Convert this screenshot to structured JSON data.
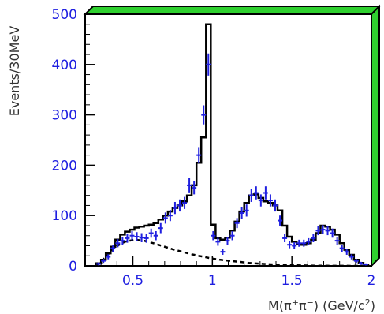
{
  "chart_data": {
    "type": "histogram",
    "title": "",
    "xlabel": {
      "prefix": "M(π",
      "sup1": "+",
      "mid": "π",
      "sup2": "−",
      "suffix": ") (GeV/c",
      "sup3": "2",
      "end": ")"
    },
    "ylabel": "Events/30MeV",
    "xlim": [
      0.2,
      2.0
    ],
    "ylim": [
      0,
      500
    ],
    "xticks": [
      {
        "value": 0.5,
        "label": "0.5"
      },
      {
        "value": 1.0,
        "label": "1"
      },
      {
        "value": 1.5,
        "label": "1.5"
      },
      {
        "value": 2.0,
        "label": "2"
      }
    ],
    "yticks": [
      {
        "value": 0,
        "label": "0"
      },
      {
        "value": 100,
        "label": "100"
      },
      {
        "value": 200,
        "label": "200"
      },
      {
        "value": 300,
        "label": "300"
      },
      {
        "value": 400,
        "label": "400"
      },
      {
        "value": 500,
        "label": "500"
      }
    ],
    "colors": {
      "frame": "#000000",
      "frame_shadow": "#2fd02f",
      "data": "#1f1fe0",
      "fit": "#000000",
      "tick_labels": "#1f1fe0"
    },
    "fit_histogram": {
      "name": "",
      "bin_edges": [
        0.27,
        0.3,
        0.33,
        0.36,
        0.39,
        0.42,
        0.45,
        0.48,
        0.51,
        0.54,
        0.57,
        0.6,
        0.63,
        0.66,
        0.69,
        0.72,
        0.75,
        0.78,
        0.81,
        0.84,
        0.87,
        0.9,
        0.93,
        0.96,
        0.99,
        1.02,
        1.05,
        1.08,
        1.11,
        1.14,
        1.17,
        1.2,
        1.23,
        1.26,
        1.29,
        1.32,
        1.35,
        1.38,
        1.41,
        1.44,
        1.47,
        1.5,
        1.53,
        1.56,
        1.59,
        1.62,
        1.65,
        1.68,
        1.71,
        1.74,
        1.77,
        1.8,
        1.83,
        1.86,
        1.89,
        1.92,
        1.95,
        1.98
      ],
      "values": [
        5,
        12,
        25,
        38,
        52,
        62,
        68,
        72,
        76,
        78,
        80,
        82,
        85,
        92,
        100,
        108,
        115,
        120,
        128,
        140,
        160,
        205,
        255,
        480,
        82,
        55,
        52,
        56,
        70,
        88,
        108,
        125,
        140,
        142,
        135,
        128,
        125,
        120,
        110,
        80,
        58,
        48,
        44,
        42,
        45,
        52,
        65,
        80,
        78,
        72,
        62,
        45,
        32,
        22,
        12,
        6,
        2
      ]
    },
    "data_points": {
      "name": "",
      "x": [
        0.285,
        0.315,
        0.345,
        0.375,
        0.405,
        0.435,
        0.465,
        0.495,
        0.525,
        0.555,
        0.585,
        0.615,
        0.645,
        0.675,
        0.705,
        0.735,
        0.765,
        0.795,
        0.825,
        0.855,
        0.885,
        0.915,
        0.945,
        0.975,
        1.005,
        1.035,
        1.065,
        1.095,
        1.125,
        1.155,
        1.185,
        1.215,
        1.245,
        1.275,
        1.305,
        1.335,
        1.365,
        1.395,
        1.425,
        1.455,
        1.485,
        1.515,
        1.545,
        1.575,
        1.605,
        1.635,
        1.665,
        1.695,
        1.725,
        1.755,
        1.785,
        1.815,
        1.845,
        1.875,
        1.905,
        1.935,
        1.965
      ],
      "y": [
        4,
        10,
        18,
        35,
        45,
        50,
        55,
        60,
        58,
        56,
        55,
        65,
        60,
        75,
        95,
        100,
        115,
        120,
        125,
        160,
        155,
        220,
        300,
        400,
        60,
        48,
        28,
        50,
        60,
        85,
        105,
        110,
        140,
        145,
        130,
        145,
        130,
        120,
        90,
        55,
        42,
        40,
        45,
        45,
        48,
        55,
        70,
        72,
        70,
        65,
        50,
        35,
        28,
        18,
        10,
        5,
        3
      ],
      "errors": [
        3,
        4,
        5,
        7,
        8,
        8,
        9,
        9,
        9,
        9,
        9,
        9,
        9,
        10,
        11,
        11,
        12,
        12,
        12,
        14,
        13,
        16,
        19,
        22,
        9,
        8,
        6,
        8,
        9,
        10,
        11,
        12,
        13,
        13,
        12,
        13,
        12,
        12,
        10,
        8,
        7,
        7,
        7,
        7,
        7,
        8,
        9,
        9,
        9,
        9,
        8,
        7,
        6,
        5,
        4,
        3,
        2
      ]
    },
    "background_curve": {
      "name": "",
      "style": "dashed",
      "x": [
        0.27,
        0.33,
        0.39,
        0.45,
        0.51,
        0.57,
        0.63,
        0.69,
        0.75,
        0.81,
        0.87,
        0.93,
        0.99,
        1.05,
        1.11,
        1.17,
        1.23,
        1.29,
        1.35,
        1.41,
        1.47,
        1.53,
        1.59,
        1.65,
        1.71,
        1.77,
        1.83,
        1.89,
        1.95,
        1.98
      ],
      "y": [
        0,
        18,
        38,
        48,
        52,
        50,
        45,
        39,
        33,
        28,
        23,
        19,
        15,
        12,
        10,
        8,
        6,
        4.5,
        3.5,
        2.5,
        1.8,
        1.2,
        0.8,
        0.5,
        0.3,
        0.2,
        0.1,
        0.05,
        0,
        0
      ]
    }
  }
}
